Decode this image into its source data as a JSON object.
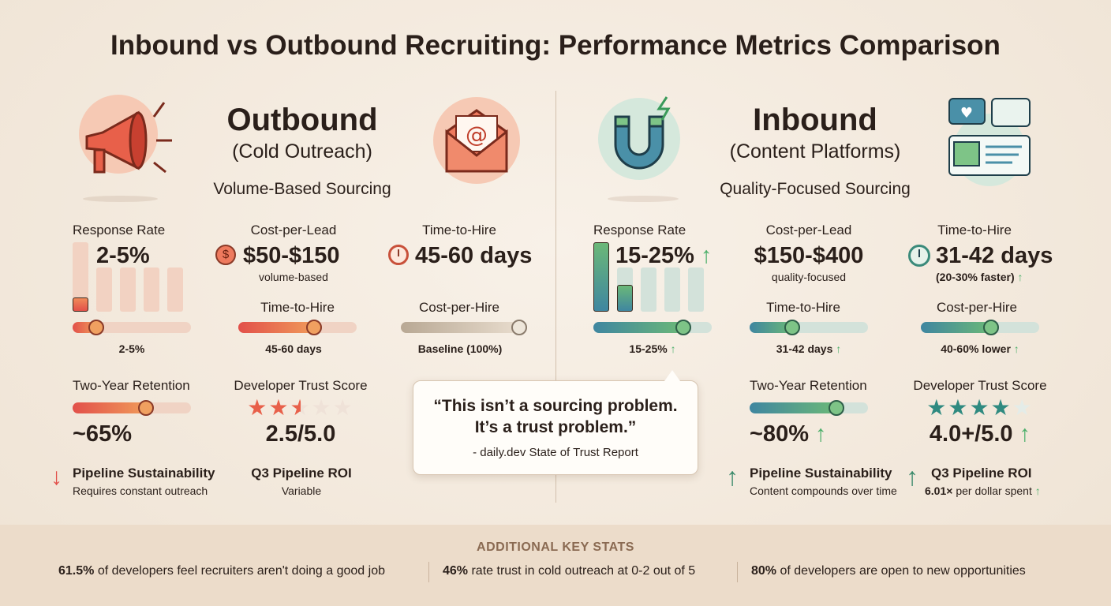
{
  "title": "Inbound vs Outbound Recruiting: Performance Metrics Comparison",
  "colors": {
    "outbound_accent": "#e2504a",
    "inbound_accent": "#4caf6a",
    "background": "#f4ebe0"
  },
  "outbound": {
    "title": "Outbound",
    "subtitle": "(Cold Outreach)",
    "tagline": "Volume-Based Sourcing",
    "icons": [
      "megaphone-icon",
      "email-at-icon"
    ],
    "response_rate": {
      "label": "Response Rate",
      "value": "2-5%",
      "slider_label": "2-5%",
      "slider_percent": 20,
      "bars_fill": [
        0.2,
        0,
        0,
        0,
        0
      ]
    },
    "cost_per_lead": {
      "label": "Cost-per-Lead",
      "value": "$50-$150",
      "note": "volume-based",
      "icon": "dollar-coin-icon"
    },
    "time_to_hire_top": {
      "label": "Time-to-Hire",
      "value": "45-60 days",
      "icon": "clock-icon"
    },
    "time_to_hire": {
      "label": "Time-to-Hire",
      "slider_label": "45-60 days",
      "slider_percent": 64
    },
    "cost_per_hire": {
      "label": "Cost-per-Hire",
      "slider_label": "Baseline (100%)",
      "slider_percent": 100
    },
    "retention": {
      "label": "Two-Year Retention",
      "value": "~65%",
      "slider_percent": 62
    },
    "trust": {
      "label": "Developer Trust Score",
      "value": "2.5/5.0",
      "stars": 2.5
    },
    "sustainability": {
      "label": "Pipeline Sustainability",
      "note": "Requires constant outreach",
      "icon": "arrow-down-icon"
    },
    "roi": {
      "label": "Q3 Pipeline ROI",
      "note": "Variable"
    }
  },
  "inbound": {
    "title": "Inbound",
    "subtitle": "(Content Platforms)",
    "tagline": "Quality-Focused Sourcing",
    "icons": [
      "magnet-icon",
      "chat-content-icon"
    ],
    "response_rate": {
      "label": "Response Rate",
      "value": "15-25%",
      "slider_label": "15-25%",
      "slider_percent": 76,
      "bars_fill": [
        1,
        0.6,
        0,
        0,
        0
      ]
    },
    "cost_per_lead": {
      "label": "Cost-per-Lead",
      "value": "$150-$400",
      "note": "quality-focused"
    },
    "time_to_hire_top": {
      "label": "Time-to-Hire",
      "value": "31-42 days",
      "note": "(20-30% faster)",
      "icon": "clock-icon"
    },
    "time_to_hire": {
      "label": "Time-to-Hire",
      "slider_label": "31-42 days",
      "slider_percent": 36
    },
    "cost_per_hire": {
      "label": "Cost-per-Hire",
      "slider_label": "40-60% lower",
      "slider_percent": 59
    },
    "retention": {
      "label": "Two-Year Retention",
      "value": "~80%",
      "slider_percent": 73
    },
    "trust": {
      "label": "Developer Trust Score",
      "value": "4.0+/5.0",
      "stars": 4
    },
    "sustainability": {
      "label": "Pipeline Sustainability",
      "note": "Content compounds over time",
      "icon": "arrow-up-icon"
    },
    "roi": {
      "label": "Q3 Pipeline ROI",
      "note_bold": "6.01×",
      "note": " per dollar spent",
      "icon": "arrow-up-icon"
    }
  },
  "quote": {
    "text_line1": "“This isn’t a sourcing problem.",
    "text_line2": "It’s a trust problem.”",
    "source": "- daily.dev State of Trust Report"
  },
  "key_stats": {
    "title": "ADDITIONAL KEY STATS",
    "items": [
      {
        "bold": "61.5%",
        "text": " of developers feel recruiters aren't doing a good job"
      },
      {
        "bold": "46%",
        "text": " rate trust in cold outreach at 0-2 out of 5"
      },
      {
        "bold": "80%",
        "text": " of developers are open to new opportunities"
      }
    ]
  },
  "up_arrow": "↑"
}
